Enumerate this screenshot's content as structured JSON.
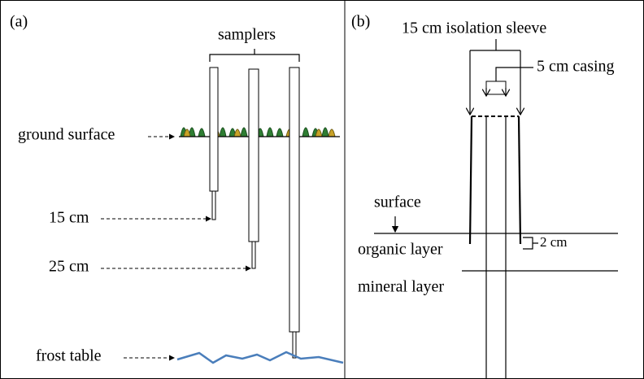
{
  "panel_a": {
    "label": "(a)",
    "samplers": "samplers",
    "ground_surface": "ground surface",
    "depth_15": "15 cm",
    "depth_25": "25 cm",
    "frost_table": "frost table"
  },
  "panel_b": {
    "label": "(b)",
    "isolation_sleeve": "15 cm isolation sleeve",
    "casing": "5 cm casing",
    "surface": "surface",
    "organic_layer": "organic layer",
    "offset": "2 cm",
    "mineral_layer": "mineral layer"
  }
}
